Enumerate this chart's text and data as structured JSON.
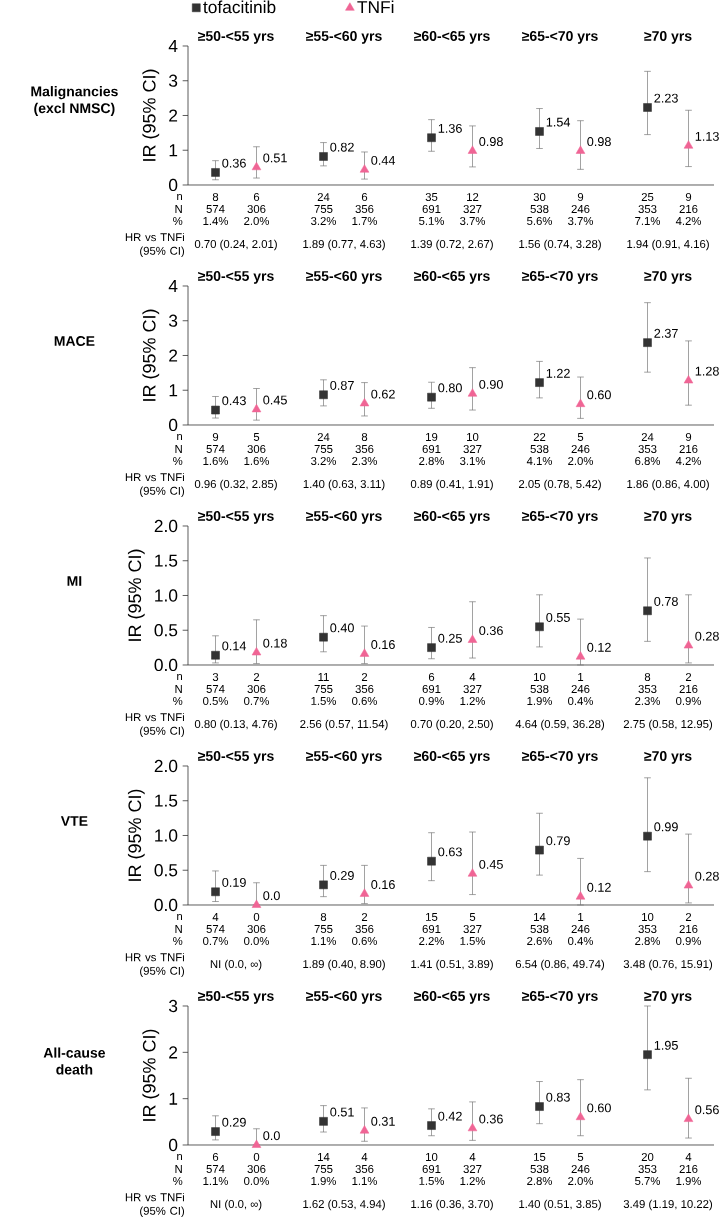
{
  "chart_data": [
    {
      "type": "scatter",
      "title": "Malignancies (excl NMSC)",
      "ylabel": "IR (95% CI)",
      "legend": "top",
      "categories": [
        "≥50-<55 yrs",
        "≥55-<60 yrs",
        "≥60-<65 yrs",
        "≥65-<70 yrs",
        "≥70 yrs"
      ],
      "ylim": [
        0,
        4
      ],
      "yticks": [
        0,
        1,
        2,
        3,
        4
      ],
      "series": [
        {
          "name": "tofacitinib",
          "color": "#333333",
          "marker": "square",
          "values": [
            0.36,
            0.82,
            1.36,
            1.54,
            2.23
          ],
          "errors": [
            [
              0.15,
              0.7
            ],
            [
              0.55,
              1.22
            ],
            [
              0.97,
              1.88
            ],
            [
              1.05,
              2.2
            ],
            [
              1.45,
              3.27
            ]
          ],
          "value_labels": [
            "0.36",
            "0.82",
            "1.36",
            "1.54",
            "2.23"
          ]
        },
        {
          "name": "TNFi",
          "color": "#f06595",
          "marker": "triangle",
          "values": [
            0.51,
            0.44,
            0.98,
            0.98,
            1.13
          ],
          "errors": [
            [
              0.2,
              1.1
            ],
            [
              0.17,
              0.95
            ],
            [
              0.52,
              1.7
            ],
            [
              0.45,
              1.85
            ],
            [
              0.53,
              2.15
            ]
          ],
          "value_labels": [
            "0.51",
            "0.44",
            "0.98",
            "0.98",
            "1.13"
          ]
        }
      ],
      "annotations": [
        "n",
        "N",
        "%",
        "HR vs TNFi (95% CI)",
        "8",
        "574",
        "1.4%",
        "6",
        "306",
        "2.0%",
        "0.70 (0.24, 2.01)",
        "24",
        "755",
        "3.2%",
        "6",
        "356",
        "1.7%",
        "1.89 (0.77, 4.63)",
        "35",
        "691",
        "5.1%",
        "12",
        "327",
        "3.7%",
        "1.39 (0.72, 2.67)",
        "30",
        "538",
        "5.6%",
        "9",
        "246",
        "3.7%",
        "1.56 (0.74, 3.28)",
        "25",
        "353",
        "7.1%",
        "9",
        "216",
        "4.2%",
        "1.94 (0.91, 4.16)"
      ]
    },
    {
      "type": "scatter",
      "title": "MACE",
      "ylabel": "IR (95% CI)",
      "categories": [
        "≥50-<55 yrs",
        "≥55-<60 yrs",
        "≥60-<65 yrs",
        "≥65-<70 yrs",
        "≥70 yrs"
      ],
      "ylim": [
        0,
        4
      ],
      "yticks": [
        0,
        1,
        2,
        3,
        4
      ],
      "series": [
        {
          "color": "#333333",
          "marker": "square",
          "values": [
            0.43,
            0.87,
            0.8,
            1.22,
            2.37
          ],
          "errors": [
            [
              0.2,
              0.82
            ],
            [
              0.55,
              1.3
            ],
            [
              0.48,
              1.23
            ],
            [
              0.78,
              1.83
            ],
            [
              1.52,
              3.52
            ]
          ],
          "value_labels": [
            "0.43",
            "0.87",
            "0.80",
            "1.22",
            "2.37"
          ]
        },
        {
          "color": "#f06595",
          "marker": "triangle",
          "values": [
            0.45,
            0.62,
            0.9,
            0.6,
            1.28
          ],
          "errors": [
            [
              0.14,
              1.05
            ],
            [
              0.26,
              1.22
            ],
            [
              0.43,
              1.65
            ],
            [
              0.19,
              1.38
            ],
            [
              0.57,
              2.42
            ]
          ],
          "value_labels": [
            "0.45",
            "0.62",
            "0.90",
            "0.60",
            "1.28"
          ]
        }
      ],
      "annotations": [
        "n",
        "N",
        "%",
        "HR vs TNFi (95% CI)",
        "9",
        "574",
        "1.6%",
        "5",
        "306",
        "1.6%",
        "0.96 (0.32, 2.85)",
        "24",
        "755",
        "3.2%",
        "8",
        "356",
        "2.3%",
        "1.40 (0.63, 3.11)",
        "19",
        "691",
        "2.8%",
        "10",
        "327",
        "3.1%",
        "0.89 (0.41, 1.91)",
        "22",
        "538",
        "4.1%",
        "5",
        "246",
        "2.0%",
        "2.05 (0.78, 5.42)",
        "24",
        "353",
        "6.8%",
        "9",
        "216",
        "4.2%",
        "1.86 (0.86, 4.00)"
      ]
    },
    {
      "type": "scatter",
      "title": "MI",
      "ylabel": "IR (95% CI)",
      "categories": [
        "≥50-<55 yrs",
        "≥55-<60 yrs",
        "≥60-<65 yrs",
        "≥65-<70 yrs",
        "≥70 yrs"
      ],
      "ylim": [
        0,
        2
      ],
      "yticks": [
        {
          "value": 0,
          "label": "0.0"
        },
        {
          "value": 0.5,
          "label": "0.5"
        },
        {
          "value": 1,
          "label": "1.0"
        },
        {
          "value": 1.5,
          "label": "1.5"
        },
        {
          "value": 2,
          "label": "2.0"
        }
      ],
      "series": [
        {
          "color": "#333333",
          "marker": "square",
          "values": [
            0.14,
            0.4,
            0.25,
            0.55,
            0.78
          ],
          "errors": [
            [
              0.03,
              0.42
            ],
            [
              0.19,
              0.71
            ],
            [
              0.09,
              0.54
            ],
            [
              0.26,
              1.01
            ],
            [
              0.34,
              1.54
            ]
          ],
          "value_labels": [
            "0.14",
            "0.40",
            "0.25",
            "0.55",
            "0.78"
          ]
        },
        {
          "color": "#f06595",
          "marker": "triangle",
          "values": [
            0.18,
            0.16,
            0.36,
            0.12,
            0.28
          ],
          "errors": [
            [
              0.02,
              0.65
            ],
            [
              0.02,
              0.56
            ],
            [
              0.1,
              0.91
            ],
            [
              0.0,
              0.66
            ],
            [
              0.03,
              1.01
            ]
          ],
          "value_labels": [
            "0.18",
            "0.16",
            "0.36",
            "0.12",
            "0.28"
          ]
        }
      ],
      "annotations": [
        "n",
        "N",
        "%",
        "HR vs TNFi (95% CI)",
        "3",
        "574",
        "0.5%",
        "2",
        "306",
        "0.7%",
        "0.80 (0.13, 4.76)",
        "11",
        "755",
        "1.5%",
        "2",
        "356",
        "0.6%",
        "2.56 (0.57, 11.54)",
        "6",
        "691",
        "0.9%",
        "4",
        "327",
        "1.2%",
        "0.70 (0.20, 2.50)",
        "10",
        "538",
        "1.9%",
        "1",
        "246",
        "0.4%",
        "4.64 (0.59, 36.28)",
        "8",
        "353",
        "2.3%",
        "2",
        "216",
        "0.9%",
        "2.75 (0.58, 12.95)"
      ]
    },
    {
      "type": "scatter",
      "title": "VTE",
      "ylabel": "IR (95% CI)",
      "categories": [
        "≥50-<55 yrs",
        "≥55-<60 yrs",
        "≥60-<65 yrs",
        "≥65-<70 yrs",
        "≥70 yrs"
      ],
      "ylim": [
        0,
        2
      ],
      "yticks": [
        {
          "value": 0,
          "label": "0.0"
        },
        {
          "value": 0.5,
          "label": "0.5"
        },
        {
          "value": 1,
          "label": "1.0"
        },
        {
          "value": 1.5,
          "label": "1.5"
        },
        {
          "value": 2,
          "label": "2.0"
        }
      ],
      "series": [
        {
          "color": "#333333",
          "marker": "square",
          "values": [
            0.19,
            0.29,
            0.63,
            0.79,
            0.99
          ],
          "errors": [
            [
              0.05,
              0.49
            ],
            [
              0.12,
              0.57
            ],
            [
              0.35,
              1.04
            ],
            [
              0.43,
              1.32
            ],
            [
              0.48,
              1.83
            ]
          ],
          "value_labels": [
            "0.19",
            "0.29",
            "0.63",
            "0.79",
            "0.99"
          ]
        },
        {
          "color": "#f06595",
          "marker": "triangle",
          "values": [
            0.0,
            0.16,
            0.45,
            0.12,
            0.28
          ],
          "errors": [
            [
              0.0,
              0.32
            ],
            [
              0.02,
              0.57
            ],
            [
              0.15,
              1.05
            ],
            [
              0.0,
              0.67
            ],
            [
              0.03,
              1.02
            ]
          ],
          "value_labels": [
            "0.0",
            "0.16",
            "0.45",
            "0.12",
            "0.28"
          ]
        }
      ],
      "annotations": [
        "n",
        "N",
        "%",
        "HR vs TNFi (95% CI)",
        "4",
        "574",
        "0.7%",
        "0",
        "306",
        "0.0%",
        "NI (0.0, ∞)",
        "8",
        "755",
        "1.1%",
        "2",
        "356",
        "0.6%",
        "1.89 (0.40, 8.90)",
        "15",
        "691",
        "2.2%",
        "5",
        "327",
        "1.5%",
        "1.41 (0.51, 3.89)",
        "14",
        "538",
        "2.6%",
        "1",
        "246",
        "0.4%",
        "6.54 (0.86, 49.74)",
        "10",
        "353",
        "2.8%",
        "2",
        "216",
        "0.9%",
        "3.48 (0.76, 15.91)"
      ]
    },
    {
      "type": "scatter",
      "title": "All-cause death",
      "ylabel": "IR (95% CI)",
      "categories": [
        "≥50-<55 yrs",
        "≥55-<60 yrs",
        "≥60-<65 yrs",
        "≥65-<70 yrs",
        "≥70 yrs"
      ],
      "ylim": [
        0,
        3
      ],
      "yticks": [
        0,
        1,
        2,
        3
      ],
      "series": [
        {
          "color": "#333333",
          "marker": "square",
          "values": [
            0.29,
            0.51,
            0.42,
            0.83,
            1.95
          ],
          "errors": [
            [
              0.11,
              0.63
            ],
            [
              0.28,
              0.85
            ],
            [
              0.2,
              0.78
            ],
            [
              0.46,
              1.37
            ],
            [
              1.19,
              3.0
            ]
          ],
          "value_labels": [
            "0.29",
            "0.51",
            "0.42",
            "0.83",
            "1.95"
          ]
        },
        {
          "color": "#f06595",
          "marker": "triangle",
          "values": [
            0.0,
            0.31,
            0.36,
            0.6,
            0.56
          ],
          "errors": [
            [
              0.0,
              0.35
            ],
            [
              0.08,
              0.8
            ],
            [
              0.1,
              0.93
            ],
            [
              0.2,
              1.41
            ],
            [
              0.15,
              1.44
            ]
          ],
          "value_labels": [
            "0.0",
            "0.31",
            "0.36",
            "0.60",
            "0.56"
          ]
        }
      ],
      "annotations": [
        "n",
        "N",
        "%",
        "HR vs TNFi (95% CI)",
        "6",
        "574",
        "1.1%",
        "0",
        "306",
        "0.0%",
        "NI (0.0, ∞)",
        "14",
        "755",
        "1.9%",
        "4",
        "356",
        "1.1%",
        "1.62 (0.53, 4.94)",
        "10",
        "691",
        "1.5%",
        "4",
        "327",
        "1.2%",
        "1.16 (0.36, 3.70)",
        "15",
        "538",
        "2.8%",
        "5",
        "246",
        "2.0%",
        "1.40 (0.51, 3.85)",
        "20",
        "353",
        "5.7%",
        "4",
        "216",
        "1.9%",
        "3.49 (1.19, 10.22)"
      ]
    }
  ]
}
